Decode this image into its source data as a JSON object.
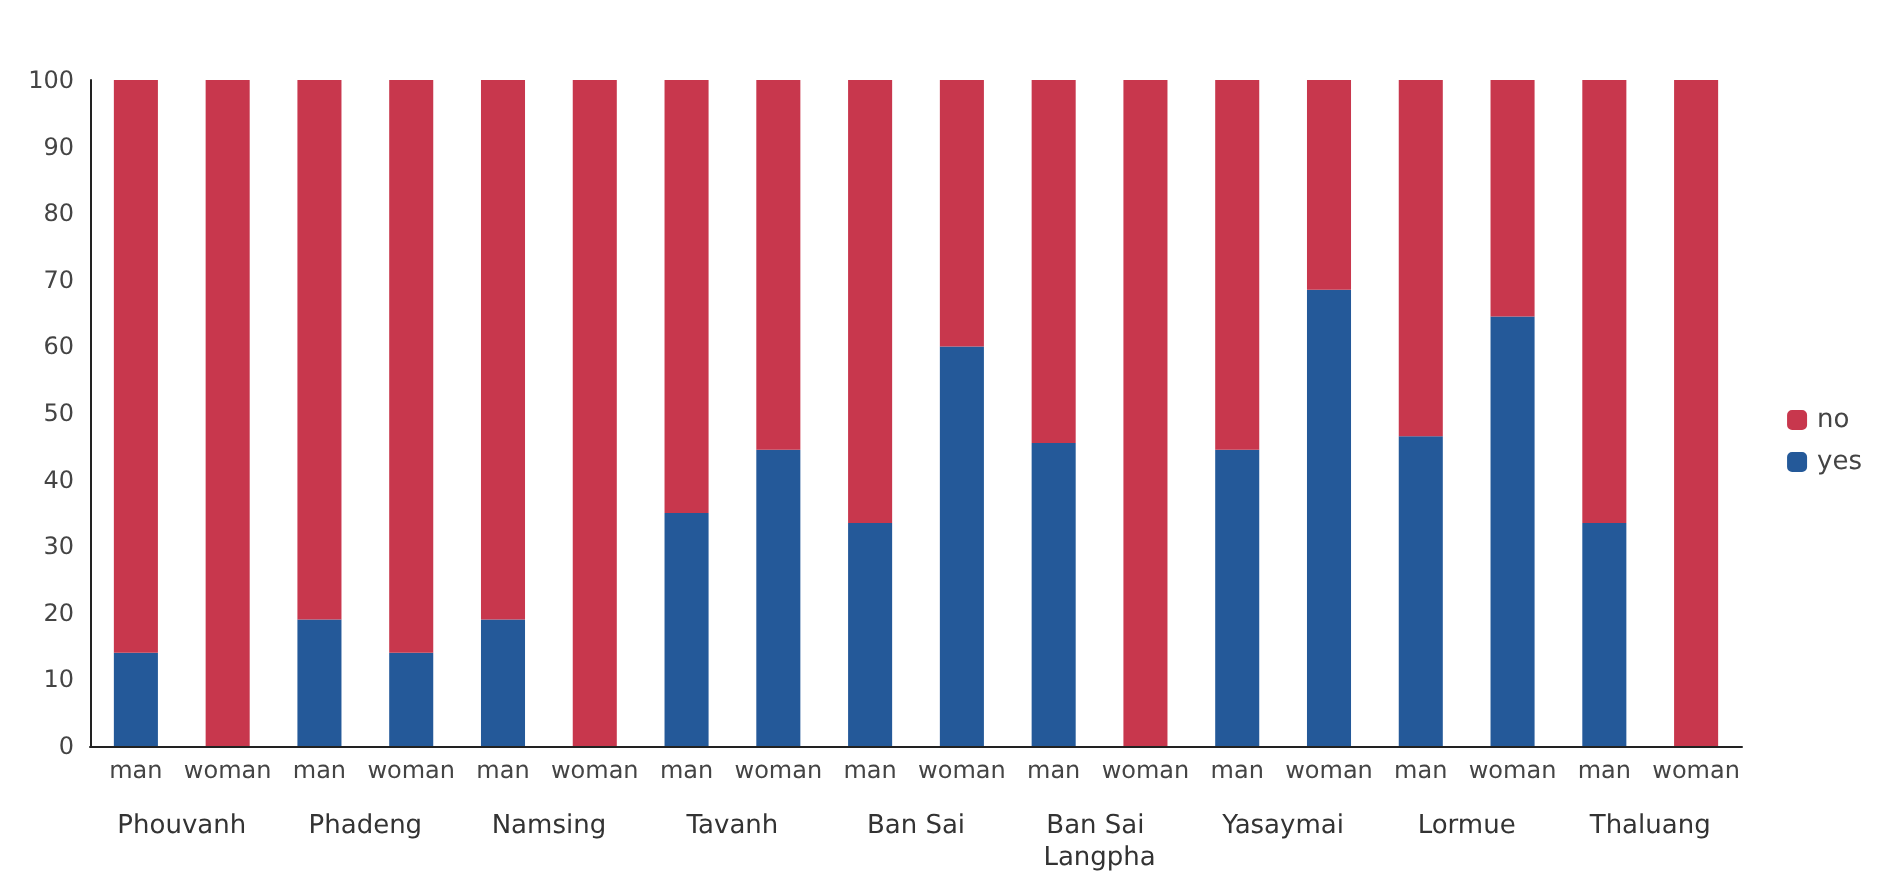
{
  "chart_data": {
    "type": "bar",
    "stacked": true,
    "categories": [
      "man",
      "woman",
      "man",
      "woman",
      "man",
      "woman",
      "man",
      "woman",
      "man",
      "woman",
      "man",
      "woman",
      "man",
      "woman",
      "man",
      "woman",
      "man",
      "woman"
    ],
    "annotations": [
      "Phouvanh",
      "Phadeng",
      "Namsing",
      "Tavanh",
      "Ban Sai",
      "Ban Sai Langpha",
      "Yasaymai",
      "Lormue",
      "Thaluang"
    ],
    "series": [
      {
        "name": "yes",
        "color": "#245999",
        "values": [
          14,
          0,
          19,
          14,
          19,
          0,
          35,
          44.5,
          33.5,
          60,
          45.5,
          0,
          44.5,
          68.5,
          46.5,
          64.5,
          33.5,
          0
        ]
      },
      {
        "name": "no",
        "color": "#c8374d",
        "values": [
          86,
          100,
          81,
          86,
          81,
          100,
          65,
          55.5,
          66.5,
          40,
          54.5,
          100,
          55.5,
          31.5,
          53.5,
          35.5,
          66.5,
          100
        ]
      }
    ],
    "ylim": [
      0,
      100
    ],
    "yticks": [
      0,
      10,
      20,
      30,
      40,
      50,
      60,
      70,
      80,
      90,
      100
    ],
    "grid": false,
    "legend": "right"
  }
}
